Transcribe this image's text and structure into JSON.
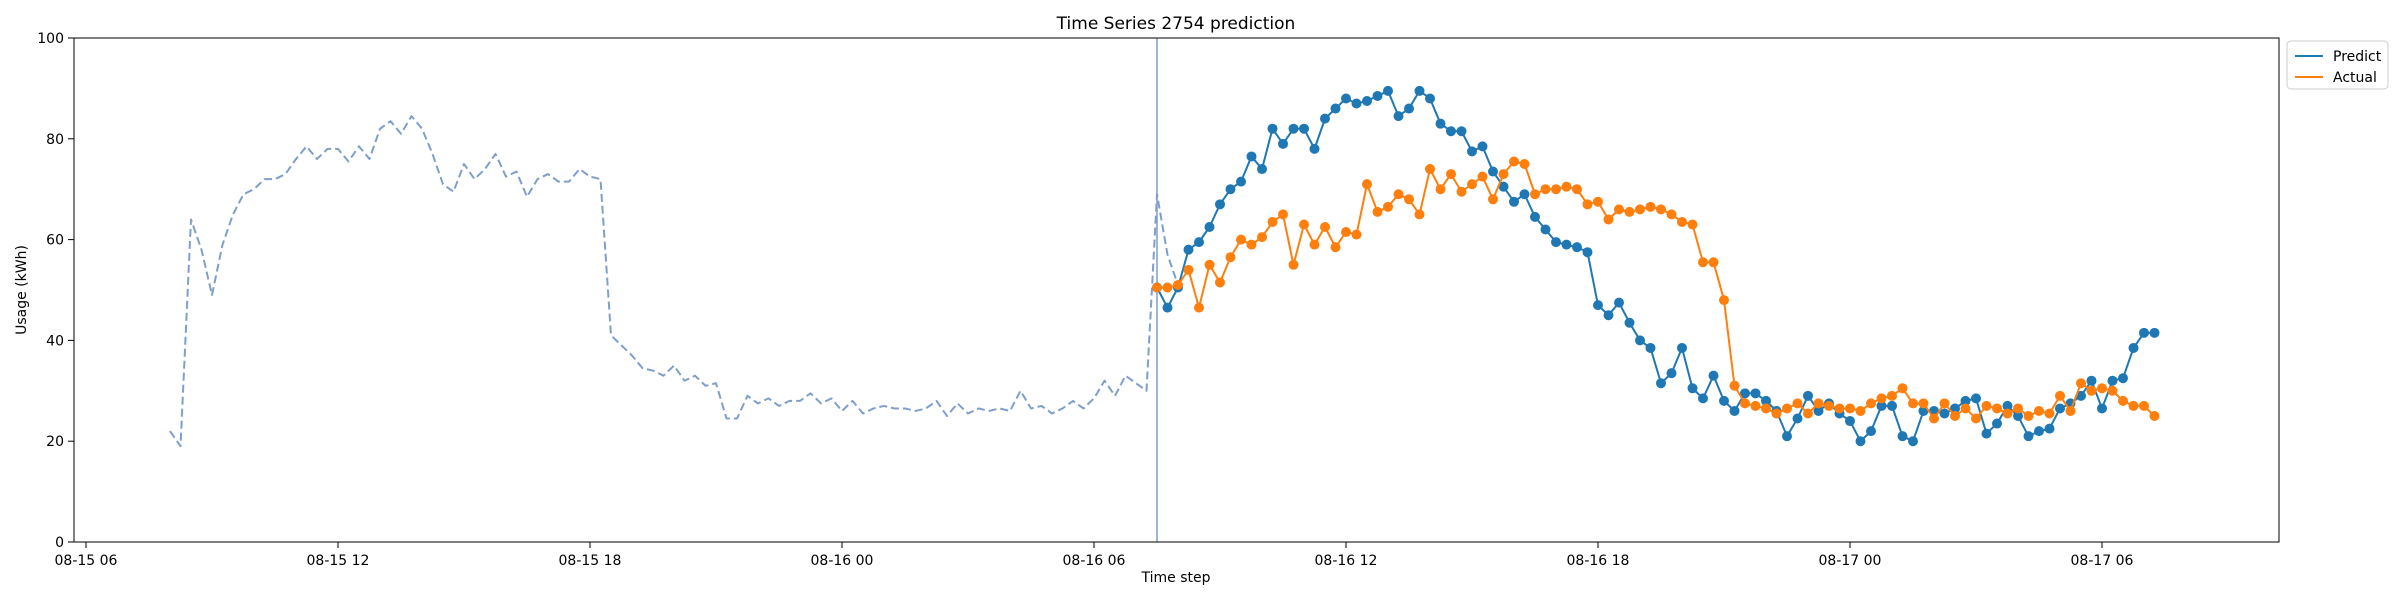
{
  "chart_data": {
    "type": "line",
    "title": "Time Series 2754 prediction",
    "xlabel": "Time step",
    "ylabel": "Usage (kWh)",
    "ylim": [
      0,
      100
    ],
    "x_tick_labels": [
      "08-15 06",
      "08-15 12",
      "08-15 18",
      "08-16 00",
      "08-16 06",
      "08-16 12",
      "08-16 18",
      "08-17 00",
      "08-17 06"
    ],
    "y_tick_labels": [
      "0",
      "20",
      "40",
      "60",
      "80",
      "100"
    ],
    "y_ticks": [
      0,
      20,
      40,
      60,
      80,
      100
    ],
    "forecast_start": "08-16 07:30",
    "legend": {
      "position": "top-right outside",
      "entries": [
        "Predict",
        "Actual"
      ]
    },
    "colors": {
      "history": "#7f9fca",
      "predict": "#1f77b4",
      "actual": "#ff7f0e",
      "divider": "#7f9fca"
    },
    "series": [
      {
        "role": "history",
        "x_start": "08-15 08:00",
        "step_minutes": 15,
        "values": [
          22,
          19,
          64,
          58,
          49,
          59,
          65,
          69,
          70,
          72,
          72,
          73,
          76,
          78.5,
          76,
          78,
          78,
          75.5,
          78.5,
          76,
          82,
          83.5,
          81,
          84.5,
          82,
          77,
          71,
          69.5,
          75,
          72,
          74,
          77,
          72.5,
          73.5,
          68.5,
          72,
          73,
          71.5,
          71.5,
          74,
          72.5,
          72,
          41,
          39,
          37,
          34.5,
          34,
          33,
          35,
          32,
          33,
          31,
          31.5,
          24.5,
          24.5,
          29,
          27.5,
          28.5,
          27,
          28,
          28,
          29.5,
          27.5,
          28.5,
          26,
          28,
          25.5,
          26.5,
          27,
          26.5,
          26.5,
          26,
          26.5,
          28,
          25,
          27.5,
          25.5,
          26.5,
          26,
          26.5,
          26,
          30,
          26.5,
          27,
          25.5,
          26.5,
          28,
          26.5,
          28.5,
          32,
          29,
          33,
          31.5,
          30,
          69,
          57,
          51
        ]
      },
      {
        "name": "Predict",
        "role": "predict",
        "x_start": "08-16 07:30",
        "step_minutes": 15,
        "values": [
          50.5,
          46.5,
          50.5,
          58,
          59.5,
          62.5,
          67,
          70,
          71.5,
          76.5,
          74,
          82,
          79,
          82,
          82,
          78,
          84,
          86,
          88,
          87,
          87.5,
          88.5,
          89.5,
          84.5,
          86,
          89.5,
          88,
          83,
          81.5,
          81.5,
          77.5,
          78.5,
          73.5,
          70.5,
          67.5,
          69,
          64.5,
          62,
          59.5,
          59,
          58.5,
          57.5,
          47,
          45,
          47.5,
          43.5,
          40,
          38.5,
          31.5,
          33.5,
          38.5,
          30.5,
          28.5,
          33,
          28,
          26,
          29.5,
          29.5,
          28,
          26,
          21,
          24.5,
          29,
          26,
          27.5,
          25.5,
          24,
          20,
          22,
          27,
          27,
          21,
          20,
          26,
          26,
          25.5,
          26.5,
          28,
          28.5,
          21.5,
          23.5,
          27,
          25,
          21,
          22,
          22.5,
          26.5,
          27.5,
          29,
          32,
          26.5,
          32,
          32.5,
          38.5,
          41.5,
          41.5
        ]
      },
      {
        "name": "Actual",
        "role": "actual",
        "x_start": "08-16 07:30",
        "step_minutes": 15,
        "values": [
          50.5,
          50.5,
          51,
          54,
          46.5,
          55,
          51.5,
          56.5,
          60,
          59,
          60.5,
          63.5,
          65,
          55,
          63,
          59,
          62.5,
          58.5,
          61.5,
          61,
          71,
          65.5,
          66.5,
          69,
          68,
          65,
          74,
          70,
          73,
          69.5,
          71,
          72.5,
          68,
          73,
          75.5,
          75,
          69,
          70,
          70,
          70.5,
          70,
          67,
          67.5,
          64,
          66,
          65.5,
          66,
          66.5,
          66,
          65,
          63.5,
          63,
          55.5,
          55.5,
          48,
          31,
          27.5,
          27,
          26.5,
          25.5,
          26.5,
          27.5,
          25.5,
          27.5,
          27,
          26.5,
          26.5,
          26,
          27.5,
          28.5,
          29,
          30.5,
          27.5,
          27.5,
          24.5,
          27.5,
          25,
          26.5,
          24.5,
          27,
          26.5,
          25.5,
          26.5,
          25,
          26,
          25.5,
          29,
          26,
          31.5,
          30,
          30.5,
          30,
          28,
          27,
          27,
          25
        ]
      }
    ]
  }
}
